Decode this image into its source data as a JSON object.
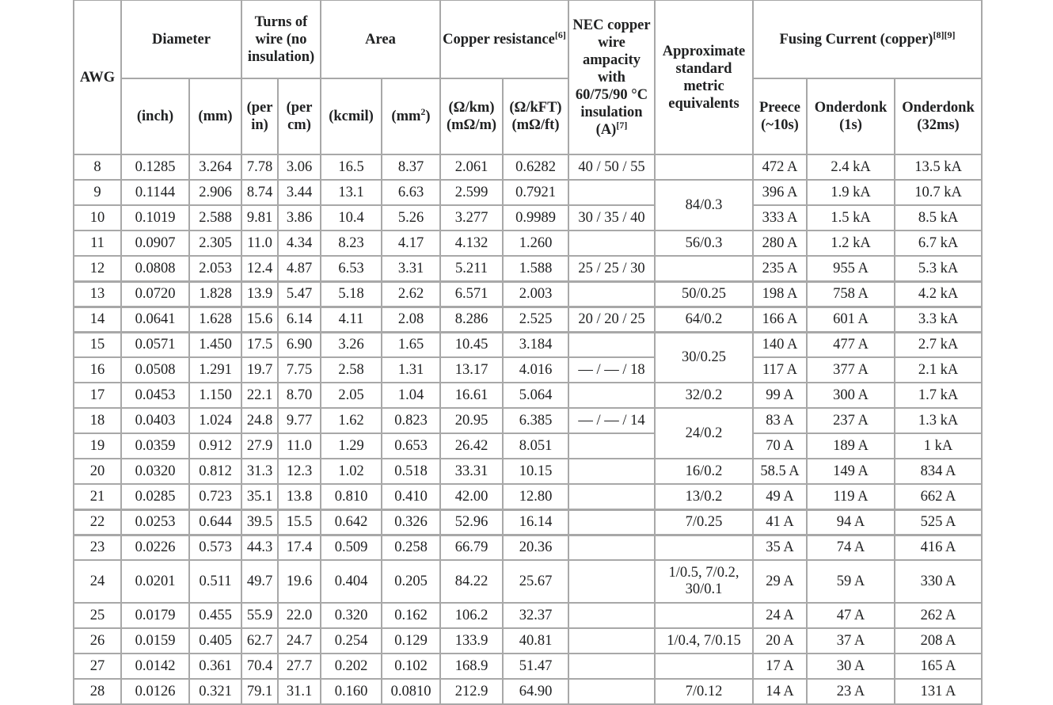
{
  "header": {
    "awg": "AWG",
    "diameter": "Diameter",
    "turns": "Turns of wire (no insulation)",
    "area": "Area",
    "copper_resistance": "Copper resistance",
    "copper_resistance_ref": "[6]",
    "nec": "NEC copper wire ampacity with 60/75/90 °C insulation (A)",
    "nec_ref": "[7]",
    "metric": "Approximate standard metric equivalents",
    "fusing": "Fusing Current (copper)",
    "fusing_ref": "[8][9]",
    "sub": {
      "inch": "(inch)",
      "mm": "(mm)",
      "per_in": "(per in)",
      "per_cm": "(per cm)",
      "kcmil": "(kcmil)",
      "mm2": "(mm",
      "mm2_sup": "2",
      "mm2_close": ")",
      "ohm_km": "(Ω/km) (mΩ/m)",
      "ohm_kft": "(Ω/kFT) (mΩ/ft)",
      "preece": "Preece (~10s)",
      "onderdonk_1s": "Onderdonk (1s)",
      "onderdonk_32ms": "Onderdonk (32ms)"
    }
  },
  "rows": [
    {
      "awg": "8",
      "inch": "0.1285",
      "mm": "3.264",
      "per_in": "7.78",
      "per_cm": "3.06",
      "kcmil": "16.5",
      "mm2": "8.37",
      "ohm_km": "2.061",
      "ohm_kft": "0.6282",
      "nec": "40 / 50 / 55",
      "metric": "",
      "preece": "472 A",
      "ond1": "2.4 kA",
      "ond32": "13.5 kA"
    },
    {
      "awg": "9",
      "inch": "0.1144",
      "mm": "2.906",
      "per_in": "8.74",
      "per_cm": "3.44",
      "kcmil": "13.1",
      "mm2": "6.63",
      "ohm_km": "2.599",
      "ohm_kft": "0.7921",
      "nec": "",
      "metric": "84/0.3",
      "preece": "396 A",
      "ond1": "1.9 kA",
      "ond32": "10.7 kA"
    },
    {
      "awg": "10",
      "inch": "0.1019",
      "mm": "2.588",
      "per_in": "9.81",
      "per_cm": "3.86",
      "kcmil": "10.4",
      "mm2": "5.26",
      "ohm_km": "3.277",
      "ohm_kft": "0.9989",
      "nec": "30 / 35 / 40",
      "preece": "333 A",
      "ond1": "1.5 kA",
      "ond32": "8.5 kA"
    },
    {
      "awg": "11",
      "inch": "0.0907",
      "mm": "2.305",
      "per_in": "11.0",
      "per_cm": "4.34",
      "kcmil": "8.23",
      "mm2": "4.17",
      "ohm_km": "4.132",
      "ohm_kft": "1.260",
      "nec": "",
      "metric": "56/0.3",
      "preece": "280 A",
      "ond1": "1.2 kA",
      "ond32": "6.7 kA"
    },
    {
      "awg": "12",
      "inch": "0.0808",
      "mm": "2.053",
      "per_in": "12.4",
      "per_cm": "4.87",
      "kcmil": "6.53",
      "mm2": "3.31",
      "ohm_km": "5.211",
      "ohm_kft": "1.588",
      "nec": "25 / 25 / 30",
      "metric": "",
      "preece": "235 A",
      "ond1": "955 A",
      "ond32": "5.3 kA"
    },
    {
      "awg": "13",
      "inch": "0.0720",
      "mm": "1.828",
      "per_in": "13.9",
      "per_cm": "5.47",
      "kcmil": "5.18",
      "mm2": "2.62",
      "ohm_km": "6.571",
      "ohm_kft": "2.003",
      "nec": "",
      "metric": "50/0.25",
      "preece": "198 A",
      "ond1": "758 A",
      "ond32": "4.2 kA"
    },
    {
      "awg": "14",
      "inch": "0.0641",
      "mm": "1.628",
      "per_in": "15.6",
      "per_cm": "6.14",
      "kcmil": "4.11",
      "mm2": "2.08",
      "ohm_km": "8.286",
      "ohm_kft": "2.525",
      "nec": "20 / 20 / 25",
      "metric": "64/0.2",
      "preece": "166 A",
      "ond1": "601 A",
      "ond32": "3.3 kA"
    },
    {
      "awg": "15",
      "inch": "0.0571",
      "mm": "1.450",
      "per_in": "17.5",
      "per_cm": "6.90",
      "kcmil": "3.26",
      "mm2": "1.65",
      "ohm_km": "10.45",
      "ohm_kft": "3.184",
      "nec": "",
      "metric": "30/0.25",
      "preece": "140 A",
      "ond1": "477 A",
      "ond32": "2.7 kA"
    },
    {
      "awg": "16",
      "inch": "0.0508",
      "mm": "1.291",
      "per_in": "19.7",
      "per_cm": "7.75",
      "kcmil": "2.58",
      "mm2": "1.31",
      "ohm_km": "13.17",
      "ohm_kft": "4.016",
      "nec": "— / — / 18",
      "preece": "117 A",
      "ond1": "377 A",
      "ond32": "2.1 kA"
    },
    {
      "awg": "17",
      "inch": "0.0453",
      "mm": "1.150",
      "per_in": "22.1",
      "per_cm": "8.70",
      "kcmil": "2.05",
      "mm2": "1.04",
      "ohm_km": "16.61",
      "ohm_kft": "5.064",
      "nec": "",
      "metric": "32/0.2",
      "preece": "99 A",
      "ond1": "300 A",
      "ond32": "1.7 kA"
    },
    {
      "awg": "18",
      "inch": "0.0403",
      "mm": "1.024",
      "per_in": "24.8",
      "per_cm": "9.77",
      "kcmil": "1.62",
      "mm2": "0.823",
      "ohm_km": "20.95",
      "ohm_kft": "6.385",
      "nec": "— / — / 14",
      "metric": "24/0.2",
      "preece": "83 A",
      "ond1": "237 A",
      "ond32": "1.3 kA"
    },
    {
      "awg": "19",
      "inch": "0.0359",
      "mm": "0.912",
      "per_in": "27.9",
      "per_cm": "11.0",
      "kcmil": "1.29",
      "mm2": "0.653",
      "ohm_km": "26.42",
      "ohm_kft": "8.051",
      "nec": "",
      "preece": "70 A",
      "ond1": "189 A",
      "ond32": "1 kA"
    },
    {
      "awg": "20",
      "inch": "0.0320",
      "mm": "0.812",
      "per_in": "31.3",
      "per_cm": "12.3",
      "kcmil": "1.02",
      "mm2": "0.518",
      "ohm_km": "33.31",
      "ohm_kft": "10.15",
      "nec": "",
      "metric": "16/0.2",
      "preece": "58.5 A",
      "ond1": "149 A",
      "ond32": "834 A"
    },
    {
      "awg": "21",
      "inch": "0.0285",
      "mm": "0.723",
      "per_in": "35.1",
      "per_cm": "13.8",
      "kcmil": "0.810",
      "mm2": "0.410",
      "ohm_km": "42.00",
      "ohm_kft": "12.80",
      "nec": "",
      "metric": "13/0.2",
      "preece": "49 A",
      "ond1": "119 A",
      "ond32": "662 A"
    },
    {
      "awg": "22",
      "inch": "0.0253",
      "mm": "0.644",
      "per_in": "39.5",
      "per_cm": "15.5",
      "kcmil": "0.642",
      "mm2": "0.326",
      "ohm_km": "52.96",
      "ohm_kft": "16.14",
      "nec": "",
      "metric": "7/0.25",
      "preece": "41 A",
      "ond1": "94 A",
      "ond32": "525 A"
    },
    {
      "awg": "23",
      "inch": "0.0226",
      "mm": "0.573",
      "per_in": "44.3",
      "per_cm": "17.4",
      "kcmil": "0.509",
      "mm2": "0.258",
      "ohm_km": "66.79",
      "ohm_kft": "20.36",
      "nec": "",
      "metric": "",
      "preece": "35 A",
      "ond1": "74 A",
      "ond32": "416 A"
    },
    {
      "awg": "24",
      "inch": "0.0201",
      "mm": "0.511",
      "per_in": "49.7",
      "per_cm": "19.6",
      "kcmil": "0.404",
      "mm2": "0.205",
      "ohm_km": "84.22",
      "ohm_kft": "25.67",
      "nec": "",
      "metric": "1/0.5, 7/0.2, 30/0.1",
      "preece": "29 A",
      "ond1": "59 A",
      "ond32": "330 A"
    },
    {
      "awg": "25",
      "inch": "0.0179",
      "mm": "0.455",
      "per_in": "55.9",
      "per_cm": "22.0",
      "kcmil": "0.320",
      "mm2": "0.162",
      "ohm_km": "106.2",
      "ohm_kft": "32.37",
      "nec": "",
      "metric": "",
      "preece": "24 A",
      "ond1": "47 A",
      "ond32": "262 A"
    },
    {
      "awg": "26",
      "inch": "0.0159",
      "mm": "0.405",
      "per_in": "62.7",
      "per_cm": "24.7",
      "kcmil": "0.254",
      "mm2": "0.129",
      "ohm_km": "133.9",
      "ohm_kft": "40.81",
      "nec": "",
      "metric": "1/0.4, 7/0.15",
      "preece": "20 A",
      "ond1": "37 A",
      "ond32": "208 A"
    },
    {
      "awg": "27",
      "inch": "0.0142",
      "mm": "0.361",
      "per_in": "70.4",
      "per_cm": "27.7",
      "kcmil": "0.202",
      "mm2": "0.102",
      "ohm_km": "168.9",
      "ohm_kft": "51.47",
      "nec": "",
      "metric": "",
      "preece": "17 A",
      "ond1": "30 A",
      "ond32": "165 A"
    },
    {
      "awg": "28",
      "inch": "0.0126",
      "mm": "0.321",
      "per_in": "79.1",
      "per_cm": "31.1",
      "kcmil": "0.160",
      "mm2": "0.0810",
      "ohm_km": "212.9",
      "ohm_kft": "64.90",
      "nec": "",
      "metric": "7/0.12",
      "preece": "14 A",
      "ond1": "23 A",
      "ond32": "131 A"
    }
  ]
}
